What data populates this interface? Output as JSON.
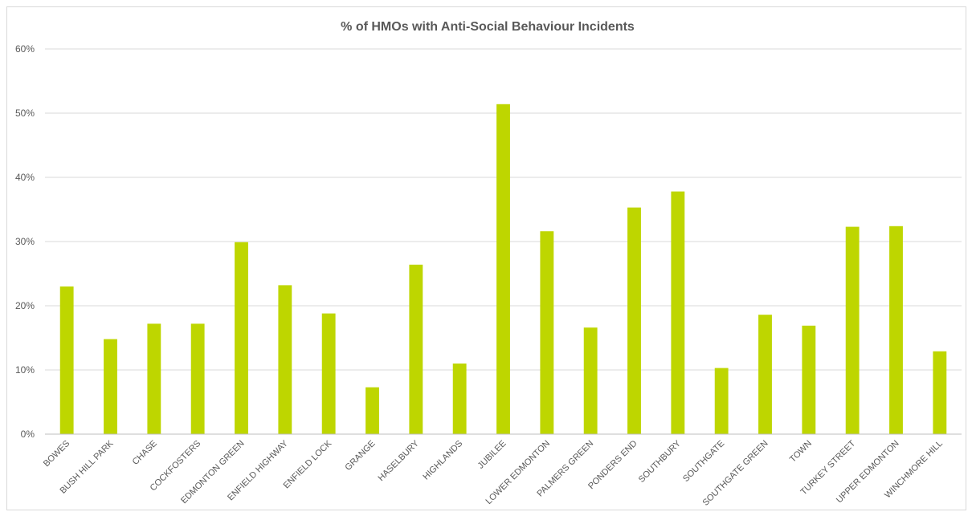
{
  "chart_data": {
    "type": "bar",
    "title": "% of HMOs with Anti-Social Behaviour Incidents",
    "xlabel": "",
    "ylabel": "",
    "ylim": [
      0,
      60
    ],
    "yticks": [
      "0%",
      "10%",
      "20%",
      "30%",
      "40%",
      "50%",
      "60%"
    ],
    "ytick_values": [
      0,
      10,
      20,
      30,
      40,
      50,
      60
    ],
    "grid": true,
    "legend": "none",
    "bar_color": "#bed600",
    "categories": [
      "BOWES",
      "BUSH HILL PARK",
      "CHASE",
      "COCKFOSTERS",
      "EDMONTON GREEN",
      "ENFIELD HIGHWAY",
      "ENFIELD LOCK",
      "GRANGE",
      "HASELBURY",
      "HIGHLANDS",
      "JUBILEE",
      "LOWER EDMONTON",
      "PALMERS GREEN",
      "PONDERS END",
      "SOUTHBURY",
      "SOUTHGATE",
      "SOUTHGATE GREEN",
      "TOWN",
      "TURKEY STREET",
      "UPPER EDMONTON",
      "WINCHMORE HILL"
    ],
    "values": [
      23.0,
      14.8,
      17.2,
      17.2,
      29.9,
      23.2,
      18.8,
      7.3,
      26.4,
      11.0,
      51.4,
      31.6,
      16.6,
      35.3,
      37.8,
      10.3,
      18.6,
      16.9,
      32.3,
      32.4,
      12.9
    ]
  }
}
